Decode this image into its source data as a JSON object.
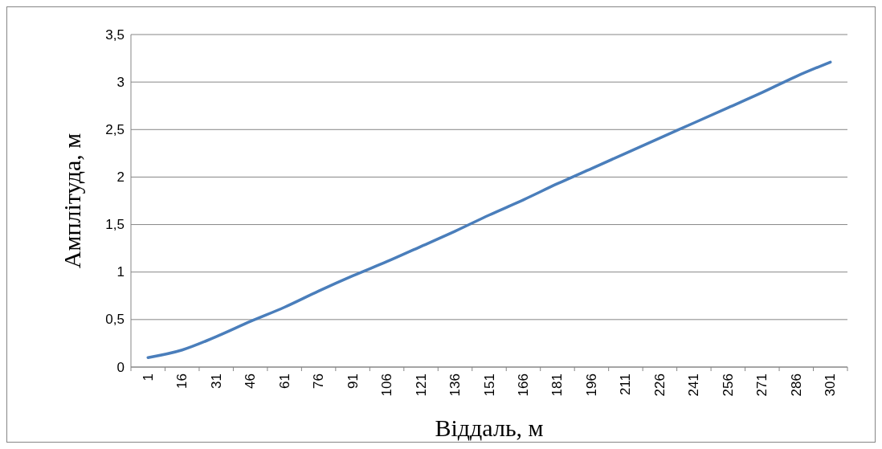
{
  "chart_data": {
    "type": "line",
    "xlabel": "Віддаль, м",
    "ylabel": "Амплітуда, м",
    "categories": [
      "1",
      "16",
      "31",
      "46",
      "61",
      "76",
      "91",
      "106",
      "121",
      "136",
      "151",
      "166",
      "181",
      "196",
      "211",
      "226",
      "241",
      "256",
      "271",
      "286",
      "301"
    ],
    "series": [
      {
        "color": "#4a7ebb",
        "values": [
          0.1,
          0.18,
          0.32,
          0.48,
          0.63,
          0.8,
          0.96,
          1.11,
          1.27,
          1.43,
          1.6,
          1.76,
          1.93,
          2.09,
          2.25,
          2.41,
          2.57,
          2.73,
          2.89,
          3.06,
          3.21
        ]
      }
    ],
    "ylim": [
      0,
      3.5
    ],
    "yticks": [
      {
        "value": 0,
        "label": "0"
      },
      {
        "value": 0.5,
        "label": "0,5"
      },
      {
        "value": 1,
        "label": "1"
      },
      {
        "value": 1.5,
        "label": "1,5"
      },
      {
        "value": 2,
        "label": "2"
      },
      {
        "value": 2.5,
        "label": "2,5"
      },
      {
        "value": 3,
        "label": "3"
      },
      {
        "value": 3.5,
        "label": "3,5"
      }
    ],
    "grid": "y",
    "marker": "none",
    "line_style": "solid"
  }
}
